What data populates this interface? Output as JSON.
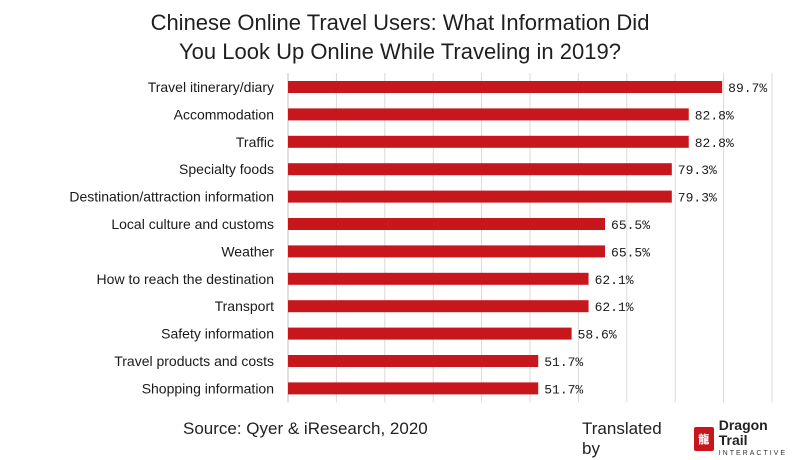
{
  "title_line1": "Chinese Online Travel Users: What Information Did",
  "title_line2": "You Look Up Online While Traveling in 2019?",
  "source": "Source: Qyer & iResearch, 2020",
  "translated_by": "Translated by",
  "logo": {
    "brand": "Dragon Trail",
    "sub": "INTERACTIVE",
    "icon": "dragon-seal-icon"
  },
  "colors": {
    "bar": "#c8161d",
    "grid": "#d9d9d9",
    "text": "#1a1a1a"
  },
  "chart_data": {
    "type": "bar",
    "orientation": "horizontal",
    "categories": [
      "Travel itinerary/diary",
      "Accommodation",
      "Traffic",
      "Specialty foods",
      "Destination/attraction information",
      "Local culture and customs",
      "Weather",
      "How to reach the destination",
      "Transport",
      "Safety information",
      "Travel products and costs",
      "Shopping information"
    ],
    "values": [
      89.7,
      82.8,
      82.8,
      79.3,
      79.3,
      65.5,
      65.5,
      62.1,
      62.1,
      58.6,
      51.7,
      51.7
    ],
    "value_labels": [
      "89.7%",
      "82.8%",
      "82.8%",
      "79.3%",
      "79.3%",
      "65.5%",
      "65.5%",
      "62.1%",
      "62.1%",
      "58.6%",
      "51.7%",
      "51.7%"
    ],
    "xlim": [
      0,
      100
    ],
    "grid": true,
    "legend": false
  }
}
